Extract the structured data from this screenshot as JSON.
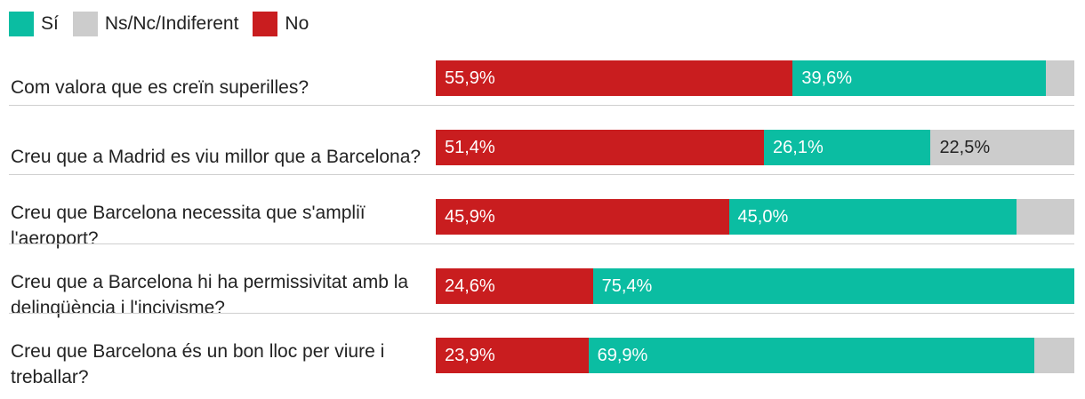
{
  "chart_data": {
    "type": "bar",
    "orientation": "horizontal",
    "stacked": true,
    "legend": [
      {
        "key": "si",
        "label": "Sí",
        "color": "#0bbda2"
      },
      {
        "key": "ns",
        "label": "Ns/Nc/Indiferent",
        "color": "#cccccc"
      },
      {
        "key": "no",
        "label": "No",
        "color": "#c91d1f"
      }
    ],
    "segment_order": [
      "no",
      "si",
      "ns"
    ],
    "label_colors": {
      "no": "#ffffff",
      "si": "#ffffff",
      "ns": "#222222"
    },
    "xlim": [
      0,
      100
    ],
    "categories": [
      "Com valora que es creïn superilles?",
      "Creu que a Madrid es viu millor que a Barcelona?",
      "Creu que Barcelona necessita que s'ampliï l'aeroport?",
      "Creu que a Barcelona hi ha permissivitat amb la delinqüència i l'incivisme?",
      "Creu que Barcelona és un bon lloc per viure i treballar?"
    ],
    "series": [
      {
        "key": "no",
        "name": "No",
        "values": [
          55.9,
          51.4,
          45.9,
          24.6,
          23.9
        ],
        "labels": [
          "55,9%",
          "51,4%",
          "45,9%",
          "24,6%",
          "23,9%"
        ]
      },
      {
        "key": "si",
        "name": "Sí",
        "values": [
          39.6,
          26.1,
          45.0,
          75.4,
          69.9
        ],
        "labels": [
          "39,6%",
          "26,1%",
          "45,0%",
          "75,4%",
          "69,9%"
        ]
      },
      {
        "key": "ns",
        "name": "Ns/Nc/Indiferent",
        "values": [
          4.5,
          22.5,
          9.1,
          0.0,
          6.2
        ],
        "labels": [
          "",
          "22,5%",
          "",
          "",
          ""
        ]
      }
    ]
  }
}
